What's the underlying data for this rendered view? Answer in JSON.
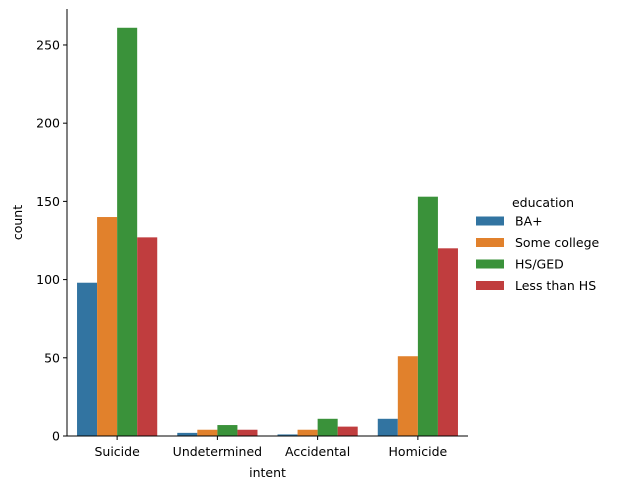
{
  "chart_data": {
    "type": "bar",
    "title": "",
    "xlabel": "intent",
    "ylabel": "count",
    "categories": [
      "Suicide",
      "Undetermined",
      "Accidental",
      "Homicide"
    ],
    "ylim": [
      0,
      273
    ],
    "yticks": [
      0,
      50,
      100,
      150,
      200,
      250
    ],
    "grid": false,
    "legend": {
      "title": "education",
      "position": "right"
    },
    "series": [
      {
        "name": "BA+",
        "color": "#3274a1",
        "values": [
          98,
          2,
          1,
          11
        ]
      },
      {
        "name": "Some college",
        "color": "#e1812c",
        "values": [
          140,
          4,
          4,
          51
        ]
      },
      {
        "name": "HS/GED",
        "color": "#3a923a",
        "values": [
          261,
          7,
          11,
          153
        ]
      },
      {
        "name": "Less than HS",
        "color": "#c03d3e",
        "values": [
          127,
          4,
          6,
          120
        ]
      }
    ]
  }
}
